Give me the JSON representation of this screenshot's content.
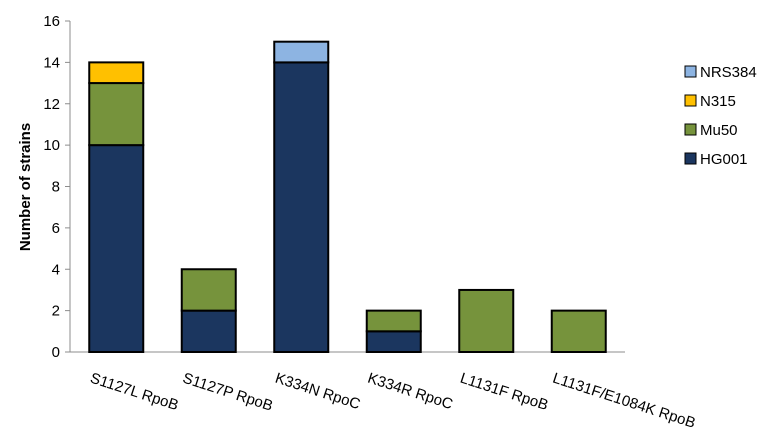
{
  "chart_data": {
    "type": "bar",
    "stacked": true,
    "title": "",
    "xlabel": "",
    "ylabel": "Number of strains",
    "ylim": [
      0,
      16
    ],
    "yticks": [
      0,
      2,
      4,
      6,
      8,
      10,
      12,
      14,
      16
    ],
    "grid": false,
    "legend_position": "right",
    "categories": [
      "S1127L RpoB",
      "S1127P RpoB",
      "K334N RpoC",
      "K334R RpoC",
      "L1131F RpoB",
      "L1131F/E1084K RpoB"
    ],
    "series": [
      {
        "name": "HG001",
        "color": "#1b365f",
        "values": [
          10,
          2,
          14,
          1,
          0,
          0
        ]
      },
      {
        "name": "Mu50",
        "color": "#76933c",
        "values": [
          3,
          2,
          0,
          1,
          3,
          2
        ]
      },
      {
        "name": "N315",
        "color": "#ffc000",
        "values": [
          1,
          0,
          0,
          0,
          0,
          0
        ]
      },
      {
        "name": "NRS384",
        "color": "#8db4e2",
        "values": [
          0,
          0,
          1,
          0,
          0,
          0
        ]
      }
    ],
    "legend_order": [
      "NRS384",
      "N315",
      "Mu50",
      "HG001"
    ]
  }
}
